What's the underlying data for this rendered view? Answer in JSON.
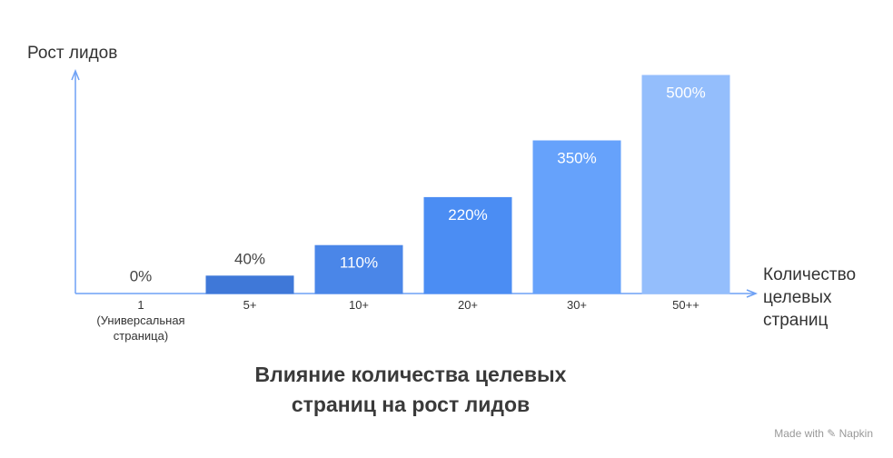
{
  "chart_data": {
    "type": "bar",
    "title": "Влияние количества целевых\nстраниц на рост лидов",
    "y_label": "Рост лидов",
    "x_label": "Количество\nцелевых\nстраниц",
    "categories": [
      "1\n(Универсальная\nстраница)",
      "5+",
      "10+",
      "20+",
      "30+",
      "50++"
    ],
    "values": [
      0,
      40,
      110,
      220,
      350,
      500
    ],
    "value_labels": [
      "0%",
      "40%",
      "110%",
      "220%",
      "350%",
      "500%"
    ],
    "colors": [
      "#4a7fd8",
      "#3f78d8",
      "#4a86e8",
      "#4b8df3",
      "#66a2fb",
      "#94befc"
    ],
    "ylim": [
      0,
      500
    ],
    "watermark": "Made with ✎ Napkin"
  }
}
